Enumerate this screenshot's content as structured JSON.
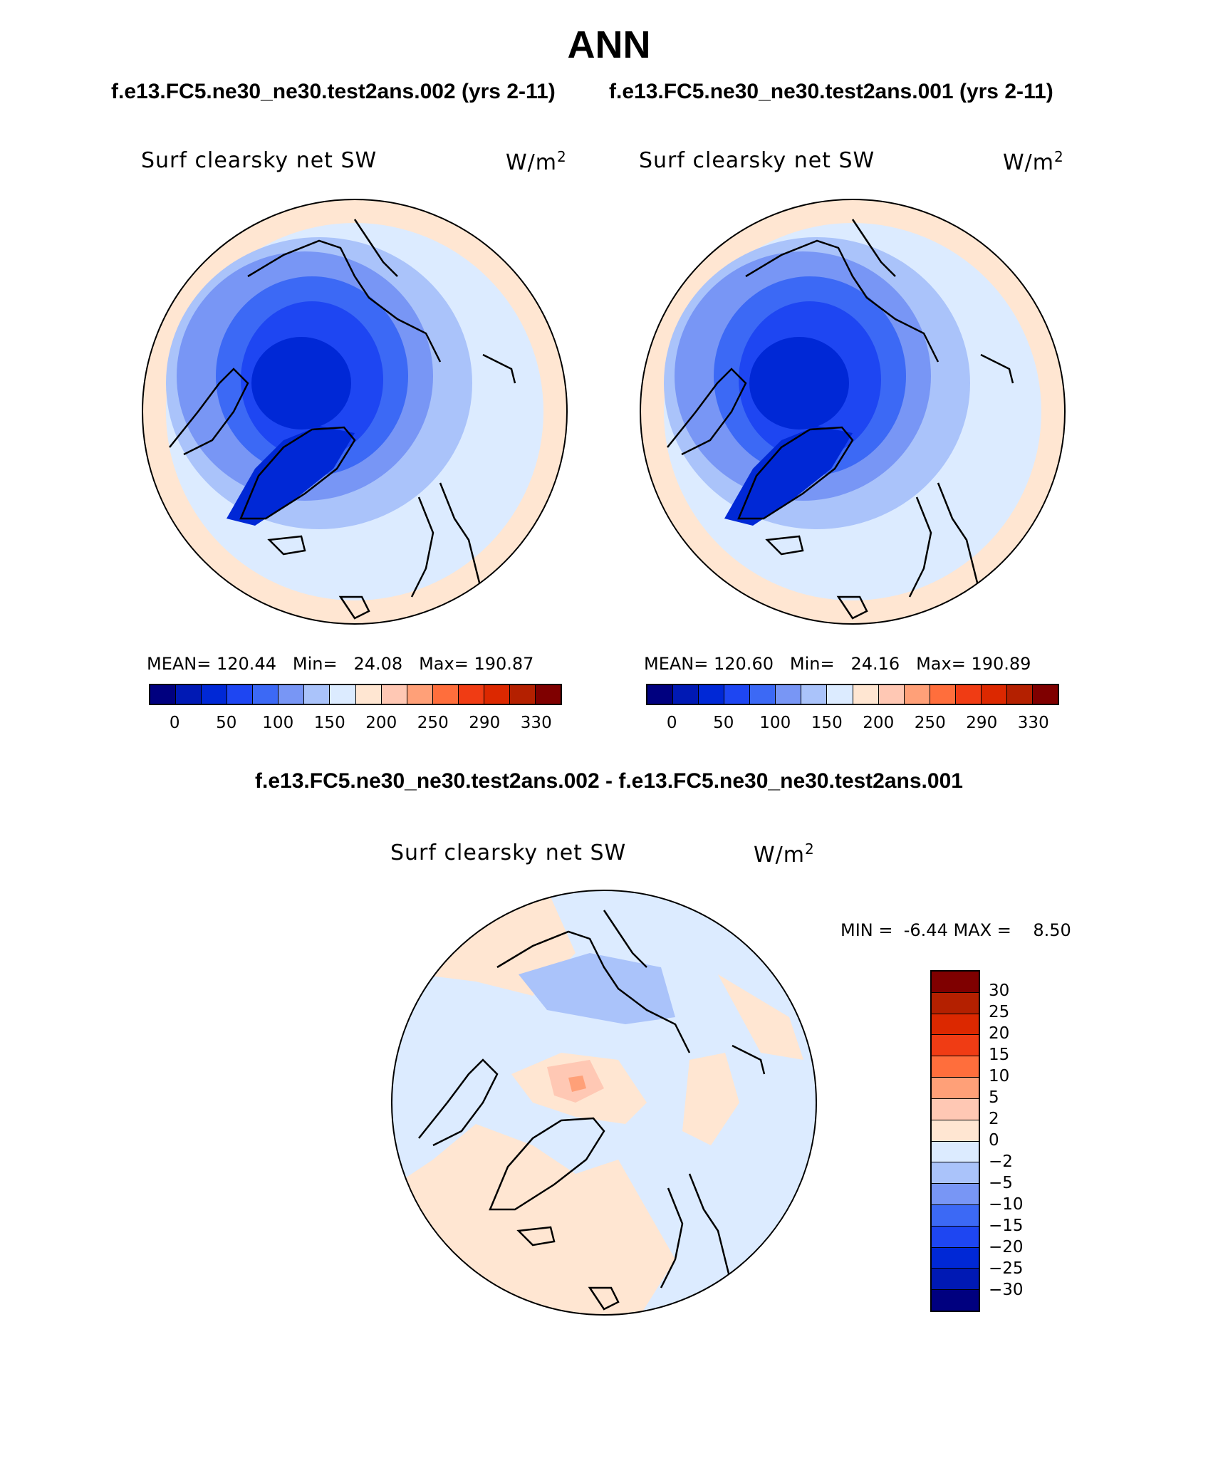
{
  "title": "ANN",
  "subtitles": {
    "left": "f.e13.FC5.ne30_ne30.test2ans.002 (yrs 2-11)",
    "right": "f.e13.FC5.ne30_ne30.test2ans.001 (yrs 2-11)"
  },
  "diff_title": "f.e13.FC5.ne30_ne30.test2ans.002 - f.e13.FC5.ne30_ne30.test2ans.001",
  "panels": [
    {
      "variable": "Surf clearsky net SW",
      "units": "W/m",
      "units_exp": "2",
      "stats": {
        "mean_label": "MEAN=",
        "mean": "120.44",
        "min_label": "Min=",
        "min": "24.08",
        "max_label": "Max=",
        "max": "190.87"
      }
    },
    {
      "variable": "Surf clearsky net SW",
      "units": "W/m",
      "units_exp": "2",
      "stats": {
        "mean_label": "MEAN=",
        "mean": "120.60",
        "min_label": "Min=",
        "min": "24.16",
        "max_label": "Max=",
        "max": "190.89"
      }
    }
  ],
  "diff_panel": {
    "variable": "Surf clearsky net SW",
    "units": "W/m",
    "units_exp": "2",
    "min_label": "MIN =",
    "min": "-6.44",
    "max_label": "MAX =",
    "max": "8.50"
  },
  "colorbar_abs": {
    "colors": [
      "#00007f",
      "#0019b4",
      "#0028d6",
      "#1e46f2",
      "#3c69f5",
      "#7896f5",
      "#aac3fa",
      "#dcebff",
      "#ffe6d2",
      "#ffc8b4",
      "#ffa078",
      "#ff6e3c",
      "#f03c14",
      "#dc2800",
      "#b42000",
      "#7f0000"
    ],
    "tick_labels": [
      "0",
      "50",
      "100",
      "150",
      "200",
      "250",
      "290",
      "330"
    ]
  },
  "colorbar_diff": {
    "colors": [
      "#7f0000",
      "#b42000",
      "#dc2800",
      "#f03c14",
      "#ff6e3c",
      "#ffa078",
      "#ffc8b4",
      "#ffe6d2",
      "#dcebff",
      "#aac3fa",
      "#7896f5",
      "#3c69f5",
      "#1e46f2",
      "#0028d6",
      "#0019b4",
      "#00007f"
    ],
    "tick_labels": [
      "30",
      "25",
      "20",
      "15",
      "10",
      "5",
      "2",
      "0",
      "−2",
      "−5",
      "−10",
      "−15",
      "−20",
      "−25",
      "−30"
    ]
  },
  "map_colors": {
    "ocean_edge": "#ffe6d2",
    "band1": "#dcebff",
    "band2": "#aac3fa",
    "band3": "#7896f5",
    "band4": "#3c69f5",
    "band5": "#1e46f2",
    "band6": "#0028d6",
    "diff_pos": "#ffe6d2",
    "diff_pos2": "#ffc8b4",
    "diff_pos3": "#ffa078",
    "diff_neg": "#dcebff",
    "diff_neg2": "#aac3fa"
  }
}
